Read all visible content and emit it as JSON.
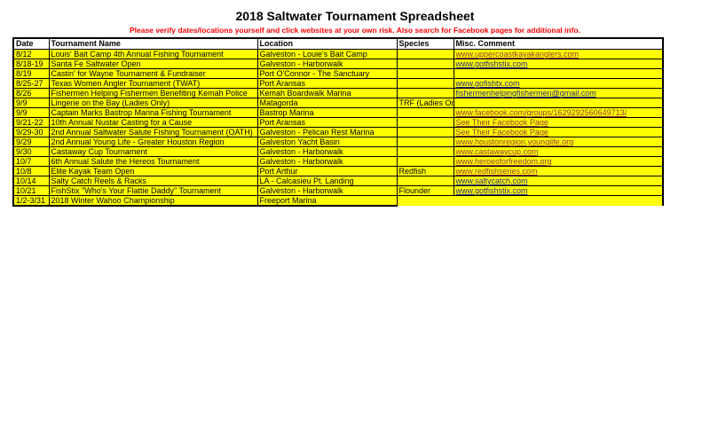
{
  "page": {
    "title": "2018 Saltwater Tournament Spreadsheet",
    "warning": "Please verify dates/locations yourself and click websites at your own risk. Also search for Facebook pages for additional info."
  },
  "table": {
    "columns": [
      "Date",
      "Tournament Name",
      "Location",
      "Species",
      "Misc. Comment"
    ],
    "rows": [
      {
        "date": "8/12",
        "name": "Louis' Bait Camp 4th Annual Fishing Tournament",
        "location": "Galveston - Louie's Bait Camp",
        "species": "",
        "comment": "www.uppercoastkayakanglers.com",
        "comment_type": "link-visited"
      },
      {
        "date": "8/18-19",
        "name": "Santa Fe Saltwater Open",
        "location": "Galveston - Harborwalk",
        "species": "",
        "comment": "www.gotfishstix.com",
        "comment_type": "link"
      },
      {
        "date": "8/19",
        "name": "Castin' for Wayne Tournament & Fundraiser",
        "location": "Port O'Connor - The Sanctuary",
        "species": "",
        "comment": "",
        "comment_type": "none"
      },
      {
        "date": "8/25-27",
        "name": "Texas Women Angler Tournament (TWAT)",
        "location": "Port Aransas",
        "species": "",
        "comment": "www.gofishtx.com",
        "comment_type": "link"
      },
      {
        "date": "8/26",
        "name": "Fishermen Helping Fishermen Benefiting Kemah Police",
        "location": "Kemah Boardwalk Marina",
        "species": "",
        "comment": "fishermenhelpingfishermen@gmail.com",
        "comment_type": "link"
      },
      {
        "date": "9/9",
        "name": "Lingerie on the Bay (Ladies Only)",
        "location": "Matagorda",
        "species": "TRF (Ladies Only)",
        "comment": "",
        "comment_type": "none"
      },
      {
        "date": "9/9",
        "name": "Captain Marks Bastrop Marina Fishing Tournament",
        "location": "Bastrop Marina",
        "species": "",
        "comment": "www.facebook.com/groups/1629292560649713/",
        "comment_type": "link-visited"
      },
      {
        "date": "9/21-22",
        "name": "10th Annual Nustar Casting for a Cause",
        "location": "Port Aransas",
        "species": "",
        "comment": "See Their Facebook Page",
        "comment_type": "link-visited"
      },
      {
        "date": "9/29-30",
        "name": "2nd Annual Saltwater Salute Fishing Tournament (OATH)",
        "location": "Galveston - Pelican Rest Marina",
        "species": "",
        "comment": "See Their Facebook Page",
        "comment_type": "link-visited"
      },
      {
        "date": "9/29",
        "name": "2nd Annual Young Life - Greater Houston Region",
        "location": "Galveston Yacht Basin",
        "species": "",
        "comment": "www.houstonregion.younglife.org",
        "comment_type": "link-visited"
      },
      {
        "date": "9/30",
        "name": "Castaway Cup Tournament",
        "location": "Galveston - Harborwalk",
        "species": "",
        "comment": "www.castawaycup.com",
        "comment_type": "link-visited"
      },
      {
        "date": "10/7",
        "name": "6th Annual Salute the Hereos Tournament",
        "location": "Galveston - Harborwalk",
        "species": "",
        "comment": "www.heroesforfreedom.org",
        "comment_type": "link-visited"
      },
      {
        "date": "10/8",
        "name": "Elite Kayak Team Open",
        "location": "Port Arthur",
        "species": "Redfish",
        "comment": "www.redfishseries.com",
        "comment_type": "link-visited"
      },
      {
        "date": "10/14",
        "name": "Salty Catch Reels & Racks",
        "location": "LA - Calcasieu Pt. Landing",
        "species": "",
        "comment": "www.saltycatch.com",
        "comment_type": "link"
      },
      {
        "date": "10/21",
        "name": "FishStix \"Who's Your Flattie Daddy\" Tournament",
        "location": "Galveston - Harborwalk",
        "species": "Flounder",
        "comment": "www.gotfishstix.com",
        "comment_type": "link"
      },
      {
        "date": "1/2-3/31",
        "name": "2018 Winter Wahoo Championship",
        "location": "Freeport Marina",
        "species": "",
        "comment": "",
        "comment_type": "none",
        "merged_tail": true
      }
    ]
  },
  "colors": {
    "row_fill": "#ffff00",
    "warning_text": "#ff0000",
    "link_blue": "#26268c",
    "link_visited": "#963634",
    "grid_line": "#000000"
  }
}
